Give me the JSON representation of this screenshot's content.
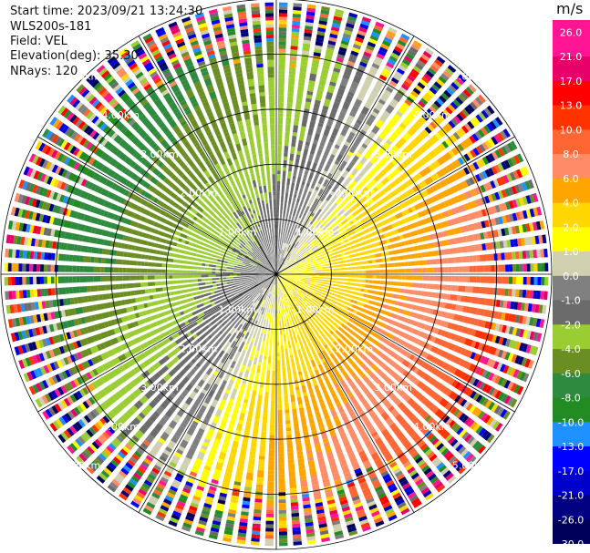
{
  "header": {
    "start_time": "Start time: 2023/09/21 13:24:30",
    "instrument": "WLS200s-181",
    "field": "Field: VEL",
    "elevation": "Elevation(deg): 35.30",
    "nrays": "NRays: 120"
  },
  "colorbar": {
    "unit": "m/s",
    "ticks": [
      "26.0",
      "21.0",
      "17.0",
      "13.0",
      "10.0",
      "8.0",
      "6.0",
      "4.0",
      "2.0",
      "1.0",
      "0.0",
      "-1.0",
      "-2.0",
      "-4.0",
      "-6.0",
      "-8.0",
      "-10.0",
      "-13.0",
      "-17.0",
      "-21.0",
      "-26.0",
      "-30.0"
    ],
    "colors": [
      "#ff1493",
      "#e8006a",
      "#ff0000",
      "#ff3300",
      "#ff6633",
      "#ff8c66",
      "#ffa500",
      "#ffd700",
      "#ffff00",
      "#d0d0b0",
      "#808080",
      "#6b6b6b",
      "#9acd32",
      "#6b8e23",
      "#2e8b3e",
      "#228b22",
      "#1e90ff",
      "#0000ff",
      "#0000cd",
      "#000080",
      "#00005a"
    ]
  },
  "chart_data": {
    "type": "heatmap",
    "projection": "polar-ppi",
    "nrays": 120,
    "range_rings_km": [
      "1.00km",
      "2.00km",
      "3.00km",
      "4.00km",
      "5.00km"
    ],
    "max_range_km": 5.0,
    "field": "VEL",
    "units": "m/s",
    "pattern": {
      "zero_line_azimuth_deg": [
        30,
        210
      ],
      "positive_sector_azimuth_deg": [
        30,
        210
      ],
      "inner_speed_ms": 2.0,
      "mid_speed_ms": 8.0,
      "noise_start_km": 4.0
    }
  }
}
